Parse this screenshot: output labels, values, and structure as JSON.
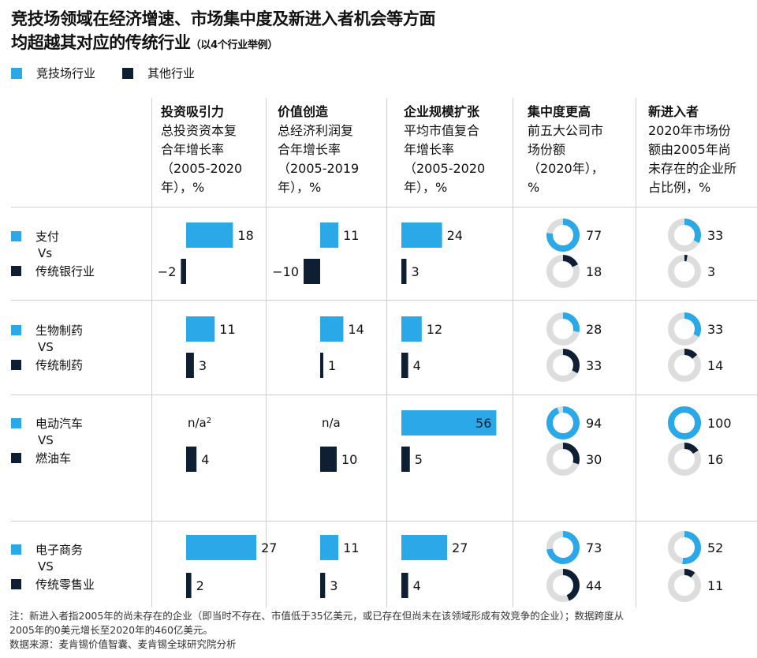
{
  "title": {
    "line1": "竞技场领域在经济增速、市场集中度及新进入者机会等方面",
    "line2": "均超越其对应的传统行业",
    "line2_small": "（以4个行业举例）"
  },
  "legend": {
    "arena": "竞技场行业",
    "other": "其他行业"
  },
  "colors": {
    "arena": "#2BA8E8",
    "other": "#0E1F33",
    "ring": "#DDDDDD",
    "grid": "#CFCFCF"
  },
  "columns": [
    {
      "head": "投资吸引力",
      "sub": [
        "总投资资本复",
        "合年增长率",
        "（2005-2020",
        "年），%"
      ]
    },
    {
      "head": "价值创造",
      "sub": [
        "总经济利润复",
        "合年增长率",
        "（2005-2019",
        "年），%"
      ]
    },
    {
      "head": "企业规模扩张",
      "sub": [
        "平均市值复合",
        "年增长率",
        "（2005-2020",
        "年），%"
      ]
    },
    {
      "head": "集中度更高",
      "sub": [
        "前五大公司市",
        "场份额",
        "（2020年），",
        "%"
      ]
    },
    {
      "head": "新进入者",
      "sub": [
        "2020年市场份",
        "额由2005年尚",
        "未存在的企业所",
        "占比例，%"
      ]
    }
  ],
  "chart_data": {
    "type": "bar",
    "rows": [
      {
        "arena": "支付",
        "vs": "Vs",
        "other": "传统银行业",
        "investment": [
          18,
          -2
        ],
        "value_creation": [
          11,
          -10
        ],
        "scale": [
          24,
          3
        ],
        "concentration": [
          77,
          18
        ],
        "new_entrants": [
          33,
          3
        ]
      },
      {
        "arena": "生物制药",
        "vs": "VS",
        "other": "传统制药",
        "investment": [
          11,
          3
        ],
        "value_creation": [
          14,
          1
        ],
        "scale": [
          12,
          4
        ],
        "concentration": [
          28,
          33
        ],
        "new_entrants": [
          33,
          14
        ]
      },
      {
        "arena": "电动汽车",
        "vs": "VS",
        "other": "燃油车",
        "investment": [
          null,
          4
        ],
        "value_creation": [
          null,
          10
        ],
        "scale": [
          56,
          5
        ],
        "concentration": [
          94,
          30
        ],
        "new_entrants": [
          100,
          16
        ]
      },
      {
        "arena": "电子商务",
        "vs": "VS",
        "other": "传统零售业",
        "investment": [
          27,
          2
        ],
        "value_creation": [
          11,
          3
        ],
        "scale": [
          27,
          4
        ],
        "concentration": [
          73,
          44
        ],
        "new_entrants": [
          52,
          11
        ]
      }
    ],
    "na_labels": {
      "investment": "n/a",
      "investment_sup": "2",
      "value_creation": "n/a"
    }
  },
  "footnote": {
    "line1": "注：新进入者指2005年的尚未存在的企业（即当时不存在、市值低于35亿美元，或已存在但尚未在该领域形成有效竞争的企业）；数据跨度从",
    "line2": "2005年的0美元增长至2020年的460亿美元。",
    "line3": "数据来源：麦肯锡价值智囊、麦肯锡全球研究院分析"
  }
}
